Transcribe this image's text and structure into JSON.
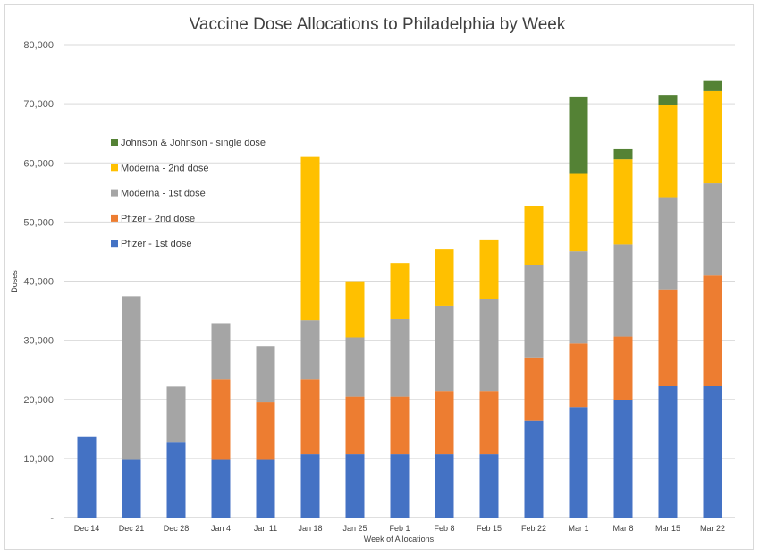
{
  "chart_data": {
    "type": "bar",
    "stacked": true,
    "title": "Vaccine Dose Allocations to Philadelphia by Week",
    "xlabel": "Week of Allocations",
    "ylabel": "Doses",
    "ylim": [
      0,
      80000
    ],
    "yticks": [
      "-",
      "10,000",
      "20,000",
      "30,000",
      "40,000",
      "50,000",
      "60,000",
      "70,000",
      "80,000"
    ],
    "grid": true,
    "legend_position": "left",
    "categories": [
      "Dec 14",
      "Dec 21",
      "Dec 28",
      "Jan 4",
      "Jan 11",
      "Jan 18",
      "Jan 25",
      "Feb 1",
      "Feb 8",
      "Feb 15",
      "Feb 22",
      "Mar 1",
      "Mar 8",
      "Mar 15",
      "Mar 22"
    ],
    "series": [
      {
        "name": "Pfizer - 1st dose",
        "color": "#4472c4",
        "values": [
          13650,
          9750,
          12675,
          9750,
          9750,
          10725,
          10725,
          10725,
          10725,
          10725,
          16380,
          18720,
          19890,
          22230,
          22230
        ]
      },
      {
        "name": "Pfizer - 2nd dose",
        "color": "#ed7d31",
        "values": [
          0,
          0,
          0,
          13650,
          9750,
          12675,
          9750,
          9750,
          10725,
          10725,
          10725,
          10725,
          10725,
          16380,
          18720
        ]
      },
      {
        "name": "Moderna - 1st dose",
        "color": "#a5a5a5",
        "values": [
          0,
          27700,
          9500,
          9500,
          9500,
          10000,
          10000,
          13100,
          14400,
          15600,
          15600,
          15600,
          15600,
          15600,
          15600
        ]
      },
      {
        "name": "Moderna - 2nd dose",
        "color": "#ffc000",
        "values": [
          0,
          0,
          0,
          0,
          0,
          27600,
          9500,
          9500,
          9500,
          10000,
          10000,
          13100,
          14400,
          15600,
          15600
        ]
      },
      {
        "name": "Johnson & Johnson - single dose",
        "color": "#548235",
        "values": [
          0,
          0,
          0,
          0,
          0,
          0,
          0,
          0,
          0,
          0,
          0,
          13100,
          1700,
          1700,
          1700
        ]
      }
    ]
  }
}
